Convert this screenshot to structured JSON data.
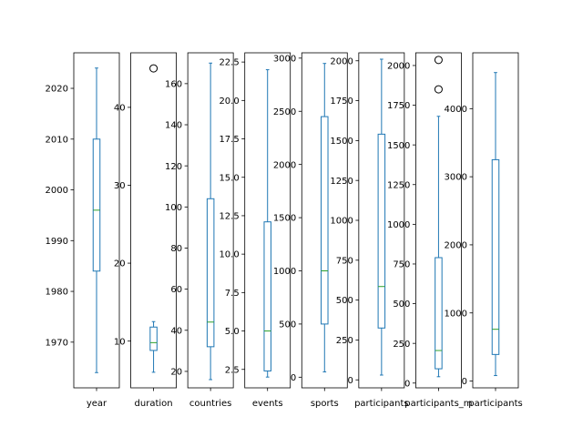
{
  "chart_data": [
    {
      "type": "box",
      "xlabel": "year",
      "ylim": [
        1961,
        2027
      ],
      "yticks": [
        1970,
        1980,
        1990,
        2000,
        2010,
        2020
      ],
      "ytick_labels": [
        "1970",
        "1980",
        "1990",
        "2000",
        "2010",
        "2020"
      ],
      "box": {
        "whisker_low": 1964,
        "q1": 1984,
        "median": 1996,
        "q3": 2010,
        "whisker_high": 2024
      },
      "outliers": []
    },
    {
      "type": "box",
      "xlabel": "duration",
      "ylim": [
        4,
        47
      ],
      "yticks": [
        10,
        20,
        30,
        40
      ],
      "ytick_labels": [
        "10",
        "20",
        "30",
        "40"
      ],
      "box": {
        "whisker_low": 6,
        "q1": 8.8,
        "median": 9.8,
        "q3": 11.8,
        "whisker_high": 12.5
      },
      "outliers": [
        45
      ]
    },
    {
      "type": "box",
      "xlabel": "countries",
      "ylim": [
        12,
        175
      ],
      "yticks": [
        20,
        40,
        60,
        80,
        100,
        120,
        140,
        160
      ],
      "ytick_labels": [
        "20",
        "40",
        "60",
        "80",
        "100",
        "120",
        "140",
        "160"
      ],
      "box": {
        "whisker_low": 16,
        "q1": 32,
        "median": 44,
        "q3": 104,
        "whisker_high": 170
      },
      "outliers": []
    },
    {
      "type": "box",
      "xlabel": "events",
      "ylim": [
        1.3,
        23.1
      ],
      "yticks": [
        2.5,
        5.0,
        7.5,
        10.0,
        12.5,
        15.0,
        17.5,
        20.0,
        22.5
      ],
      "ytick_labels": [
        "2.5",
        "5.0",
        "7.5",
        "10.0",
        "12.5",
        "15.0",
        "17.5",
        "20.0",
        "22.5"
      ],
      "box": {
        "whisker_low": 2,
        "q1": 2.4,
        "median": 5,
        "q3": 12.1,
        "whisker_high": 22
      },
      "outliers": []
    },
    {
      "type": "box",
      "xlabel": "sports",
      "ylim": [
        -100,
        3050
      ],
      "yticks": [
        0,
        500,
        1000,
        1500,
        2000,
        2500,
        3000
      ],
      "ytick_labels": [
        "0",
        "500",
        "1000",
        "1500",
        "2000",
        "2500",
        "3000"
      ],
      "box": {
        "whisker_low": 50,
        "q1": 500,
        "median": 1000,
        "q3": 2450,
        "whisker_high": 2950
      },
      "outliers": []
    },
    {
      "type": "box",
      "xlabel": "participants",
      "ylim": [
        -50,
        2050
      ],
      "yticks": [
        0,
        250,
        500,
        750,
        1000,
        1250,
        1500,
        1750,
        2000
      ],
      "ytick_labels": [
        "0",
        "250",
        "500",
        "750",
        "1000",
        "1250",
        "1500",
        "1750",
        "2000"
      ],
      "box": {
        "whisker_low": 30,
        "q1": 325,
        "median": 585,
        "q3": 1540,
        "whisker_high": 2010
      },
      "outliers": []
    },
    {
      "type": "box",
      "xlabel": "participants_m",
      "ylim": [
        -30,
        2080
      ],
      "yticks": [
        0,
        250,
        500,
        750,
        1000,
        1250,
        1500,
        1750,
        2000
      ],
      "ytick_labels": [
        "0",
        "250",
        "500",
        "750",
        "1000",
        "1250",
        "1500",
        "1750",
        "2000"
      ],
      "box": {
        "whisker_low": 40,
        "q1": 90,
        "median": 205,
        "q3": 790,
        "whisker_high": 1680
      },
      "outliers": [
        1850,
        2035
      ]
    },
    {
      "type": "box",
      "xlabel": "participants",
      "ylim": [
        -100,
        4820
      ],
      "yticks": [
        0,
        1000,
        2000,
        3000,
        4000
      ],
      "ytick_labels": [
        "0",
        "1000",
        "2000",
        "3000",
        "4000"
      ],
      "box": {
        "whisker_low": 80,
        "q1": 390,
        "median": 760,
        "q3": 3250,
        "whisker_high": 4530
      },
      "outliers": []
    }
  ]
}
